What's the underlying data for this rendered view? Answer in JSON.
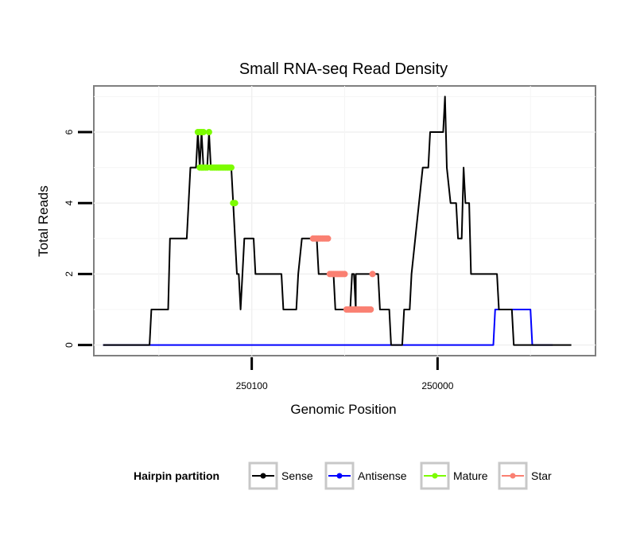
{
  "chart_data": {
    "type": "line",
    "title": "Small RNA-seq Read Density",
    "xlabel": "Genomic Position",
    "ylabel": "Total Reads",
    "x_reversed": true,
    "xlim": [
      250185,
      249915
    ],
    "ylim": [
      -0.3,
      7.3
    ],
    "x_ticks": [
      250100,
      250000
    ],
    "x_tick_labels": [
      "250100",
      "250000"
    ],
    "y_ticks": [
      0,
      2,
      4,
      6
    ],
    "y_tick_labels": [
      "0",
      "2",
      "4",
      "6"
    ],
    "grid": true,
    "legend": {
      "title": "Hairpin partition",
      "position": "bottom",
      "entries": [
        {
          "name": "Sense",
          "color": "#000000"
        },
        {
          "name": "Antisense",
          "color": "#0000ff"
        },
        {
          "name": "Mature",
          "color": "#7cfc00"
        },
        {
          "name": "Star",
          "color": "#fa8072"
        }
      ]
    },
    "series": [
      {
        "name": "Sense",
        "color": "#000000",
        "marker": false,
        "points": [
          [
            250180,
            0
          ],
          [
            250155,
            0
          ],
          [
            250154,
            1
          ],
          [
            250145,
            1
          ],
          [
            250144,
            3
          ],
          [
            250135,
            3
          ],
          [
            250134,
            4
          ],
          [
            250133,
            5
          ],
          [
            250130,
            5
          ],
          [
            250129,
            6
          ],
          [
            250128,
            5
          ],
          [
            250127,
            6
          ],
          [
            250126,
            5
          ],
          [
            250124,
            5
          ],
          [
            250123,
            6
          ],
          [
            250122,
            5
          ],
          [
            250111,
            5
          ],
          [
            250110,
            4
          ],
          [
            250108,
            2
          ],
          [
            250107,
            2
          ],
          [
            250106,
            1
          ],
          [
            250104,
            3
          ],
          [
            250099,
            3
          ],
          [
            250098,
            2
          ],
          [
            250084,
            2
          ],
          [
            250083,
            1
          ],
          [
            250076,
            1
          ],
          [
            250075,
            2
          ],
          [
            250073,
            3
          ],
          [
            250065,
            3
          ],
          [
            250064,
            2
          ],
          [
            250056,
            2
          ],
          [
            250055,
            1
          ],
          [
            250047,
            1
          ],
          [
            250046,
            2
          ],
          [
            250045,
            2
          ],
          [
            250044,
            1
          ],
          [
            250044,
            2
          ],
          [
            250032,
            2
          ],
          [
            250031,
            1
          ],
          [
            250026,
            1
          ],
          [
            250025,
            0
          ],
          [
            250019,
            0
          ],
          [
            250018,
            1
          ],
          [
            250015,
            1
          ],
          [
            250014,
            2
          ],
          [
            250012,
            3
          ],
          [
            250010,
            4
          ],
          [
            250008,
            5
          ],
          [
            250005,
            5
          ],
          [
            250004,
            6
          ],
          [
            249997,
            6
          ],
          [
            249996,
            7
          ],
          [
            249995,
            5
          ],
          [
            249993,
            4
          ],
          [
            249990,
            4
          ],
          [
            249989,
            3
          ],
          [
            249987,
            3
          ],
          [
            249986,
            5
          ],
          [
            249985,
            4
          ],
          [
            249983,
            4
          ],
          [
            249982,
            2
          ],
          [
            249968,
            2
          ],
          [
            249967,
            1
          ],
          [
            249960,
            1
          ],
          [
            249959,
            0
          ],
          [
            249928,
            0
          ]
        ]
      },
      {
        "name": "Antisense",
        "color": "#0000ff",
        "marker": false,
        "points": [
          [
            250180,
            0
          ],
          [
            249970,
            0
          ],
          [
            249969,
            1
          ],
          [
            249950,
            1
          ],
          [
            249949,
            0
          ],
          [
            249938,
            0
          ]
        ]
      },
      {
        "name": "Mature",
        "color": "#7cfc00",
        "marker": true,
        "points": [
          [
            250129,
            6
          ],
          [
            250128,
            6
          ],
          [
            250127,
            6
          ],
          [
            250126,
            6
          ],
          [
            250123,
            6
          ],
          [
            250128,
            5
          ],
          [
            250127,
            5
          ],
          [
            250126,
            5
          ],
          [
            250125,
            5
          ],
          [
            250124,
            5
          ],
          [
            250122,
            5
          ],
          [
            250121,
            5
          ],
          [
            250120,
            5
          ],
          [
            250119,
            5
          ],
          [
            250118,
            5
          ],
          [
            250117,
            5
          ],
          [
            250116,
            5
          ],
          [
            250115,
            5
          ],
          [
            250114,
            5
          ],
          [
            250113,
            5
          ],
          [
            250112,
            5
          ],
          [
            250111,
            5
          ],
          [
            250110,
            4
          ],
          [
            250109,
            4
          ]
        ]
      },
      {
        "name": "Star",
        "color": "#fa8072",
        "marker": true,
        "points": [
          [
            250067,
            3
          ],
          [
            250066,
            3
          ],
          [
            250065,
            3
          ],
          [
            250064,
            3
          ],
          [
            250063,
            3
          ],
          [
            250062,
            3
          ],
          [
            250061,
            3
          ],
          [
            250060,
            3
          ],
          [
            250059,
            3
          ],
          [
            250058,
            2
          ],
          [
            250057,
            2
          ],
          [
            250056,
            2
          ],
          [
            250055,
            2
          ],
          [
            250054,
            2
          ],
          [
            250053,
            2
          ],
          [
            250052,
            2
          ],
          [
            250051,
            2
          ],
          [
            250050,
            2
          ],
          [
            250049,
            1
          ],
          [
            250048,
            1
          ],
          [
            250047,
            1
          ],
          [
            250046,
            1
          ],
          [
            250045,
            1
          ],
          [
            250044,
            1
          ],
          [
            250043,
            1
          ],
          [
            250042,
            1
          ],
          [
            250041,
            1
          ],
          [
            250040,
            1
          ],
          [
            250039,
            1
          ],
          [
            250038,
            1
          ],
          [
            250037,
            1
          ],
          [
            250036,
            1
          ],
          [
            250035,
            2
          ]
        ]
      }
    ]
  }
}
